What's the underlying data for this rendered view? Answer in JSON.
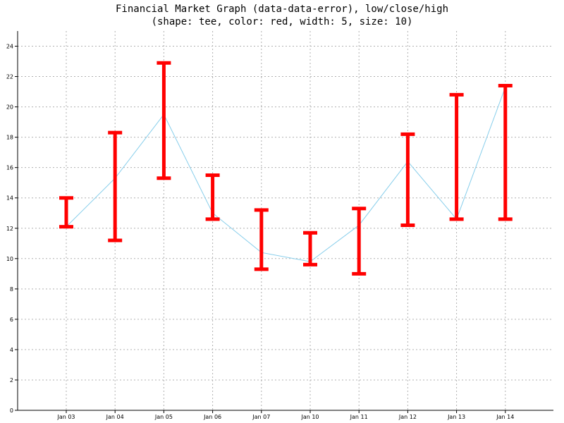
{
  "chart_data": {
    "type": "error-bar-line",
    "title": "Financial Market Graph (data-data-error), low/close/high",
    "subtitle": "(shape: tee, color: red, width: 5, size: 10)",
    "xlabel": "",
    "ylabel": "",
    "ylim": [
      0,
      25
    ],
    "yticks": [
      0,
      2,
      4,
      6,
      8,
      10,
      12,
      14,
      16,
      18,
      20,
      22,
      24
    ],
    "grid": true,
    "categories": [
      "Jan 03",
      "Jan 04",
      "Jan 05",
      "Jan 06",
      "Jan 07",
      "Jan 10",
      "Jan 11",
      "Jan 12",
      "Jan 13",
      "Jan 14"
    ],
    "close": [
      12.1,
      15.3,
      19.5,
      13.0,
      10.4,
      9.8,
      12.2,
      16.4,
      12.6,
      21.3
    ],
    "low": [
      12.1,
      11.2,
      15.3,
      12.6,
      9.3,
      9.6,
      9.0,
      12.2,
      12.6,
      12.6
    ],
    "high": [
      14.0,
      18.3,
      22.9,
      15.5,
      13.2,
      11.7,
      13.3,
      18.2,
      20.8,
      21.4
    ],
    "line_color": "#87CEEB",
    "error_color": "#ff0000",
    "grid_color": "#b0b0b0"
  }
}
